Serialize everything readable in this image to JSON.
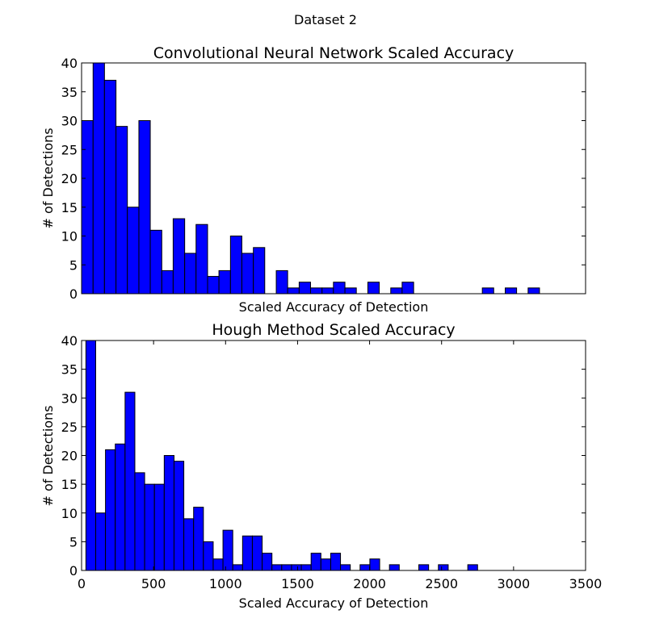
{
  "suptitle": "Dataset 2",
  "colors": {
    "bar_fill": "#0000ff",
    "bar_edge": "#000000",
    "axes": "#000000",
    "background": "#ffffff"
  },
  "chart_data": [
    {
      "type": "bar",
      "title": "Convolutional Neural Network Scaled Accuracy",
      "xlabel": "Scaled Accuracy of Detection",
      "ylabel": "# of Detections",
      "xlim": [
        0,
        3500
      ],
      "ylim": [
        0,
        40
      ],
      "xticks": [],
      "xtick_labels": [],
      "yticks": [
        0,
        5,
        10,
        15,
        20,
        25,
        30,
        35,
        40
      ],
      "ytick_labels": [
        "0",
        "5",
        "10",
        "15",
        "20",
        "25",
        "30",
        "35",
        "40"
      ],
      "bin_edges": [
        0,
        80,
        159,
        239,
        318,
        398,
        477,
        557,
        636,
        716,
        795,
        875,
        954,
        1034,
        1113,
        1193,
        1272,
        1352,
        1431,
        1511,
        1590,
        1670,
        1749,
        1829,
        1908,
        1988,
        2067,
        2147,
        2226,
        2306,
        2385,
        2465,
        2544,
        2624,
        2703,
        2783,
        2862,
        2942,
        3021,
        3101,
        3180
      ],
      "values": [
        30,
        40,
        37,
        29,
        15,
        30,
        11,
        4,
        13,
        7,
        12,
        3,
        4,
        10,
        7,
        8,
        0,
        4,
        1,
        2,
        1,
        1,
        2,
        1,
        0,
        2,
        0,
        1,
        2,
        0,
        0,
        0,
        0,
        0,
        0,
        1,
        0,
        1,
        0,
        1
      ]
    },
    {
      "type": "bar",
      "title": "Hough Method Scaled Accuracy",
      "xlabel": "Scaled Accuracy of Detection",
      "ylabel": "# of Detections",
      "xlim": [
        0,
        3500
      ],
      "ylim": [
        0,
        40
      ],
      "xticks": [
        0,
        500,
        1000,
        1500,
        2000,
        2500,
        3000,
        3500
      ],
      "xtick_labels": [
        "0",
        "500",
        "1000",
        "1500",
        "2000",
        "2500",
        "3000",
        "3500"
      ],
      "yticks": [
        0,
        5,
        10,
        15,
        20,
        25,
        30,
        35,
        40
      ],
      "ytick_labels": [
        "0",
        "5",
        "10",
        "15",
        "20",
        "25",
        "30",
        "35",
        "40"
      ],
      "bin_edges": [
        30,
        98,
        166,
        234,
        302,
        370,
        438,
        506,
        574,
        642,
        710,
        778,
        846,
        914,
        982,
        1050,
        1118,
        1186,
        1254,
        1322,
        1390,
        1458,
        1526,
        1594,
        1662,
        1730,
        1798,
        1866,
        1934,
        2002,
        2070,
        2138,
        2206,
        2274,
        2342,
        2410,
        2478,
        2546,
        2614,
        2682,
        2750
      ],
      "values": [
        40,
        10,
        21,
        22,
        31,
        17,
        15,
        15,
        20,
        19,
        9,
        11,
        5,
        2,
        7,
        1,
        6,
        6,
        3,
        1,
        1,
        1,
        1,
        3,
        2,
        3,
        1,
        0,
        1,
        2,
        0,
        1,
        0,
        0,
        1,
        0,
        1,
        0,
        0,
        1
      ]
    }
  ]
}
